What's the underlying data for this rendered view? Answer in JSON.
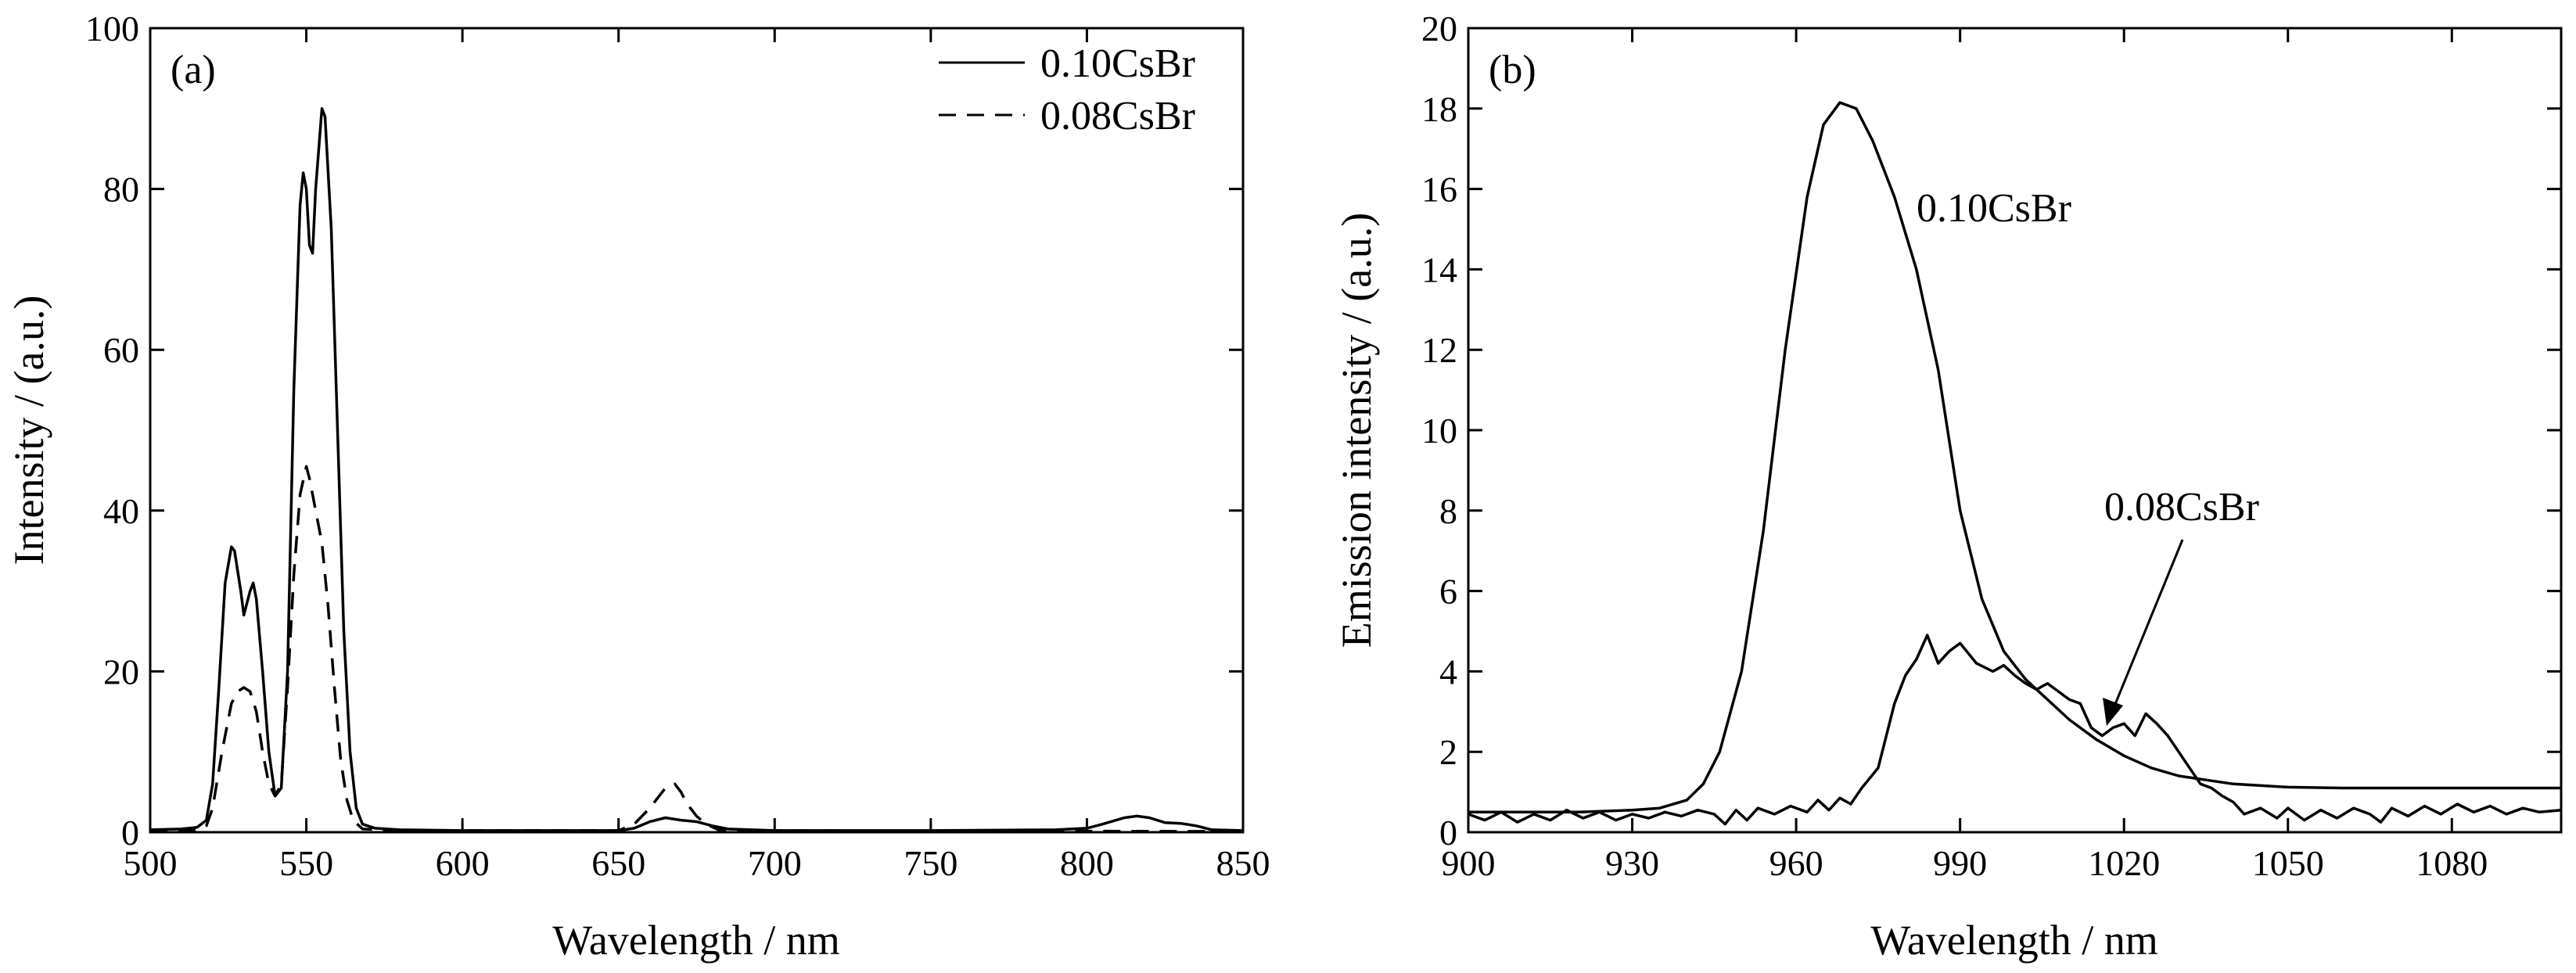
{
  "chart_data": [
    {
      "panel": "(a)",
      "type": "line",
      "xlabel": "Wavelength / nm",
      "ylabel": "Intensity / (a.u.)",
      "xlim": [
        500,
        850
      ],
      "ylim": [
        0,
        100
      ],
      "xticks": [
        500,
        550,
        600,
        650,
        700,
        750,
        800,
        850
      ],
      "yticks": [
        0,
        20,
        40,
        60,
        80,
        100
      ],
      "legend": "top-right",
      "series": [
        {
          "name": "0.10CsBr",
          "style": "solid",
          "points": [
            [
              500,
              0.3
            ],
            [
              510,
              0.4
            ],
            [
              515,
              0.6
            ],
            [
              518,
              1.5
            ],
            [
              520,
              6
            ],
            [
              522,
              18
            ],
            [
              524,
              31
            ],
            [
              526,
              35.5
            ],
            [
              527,
              35
            ],
            [
              529,
              30
            ],
            [
              530,
              27
            ],
            [
              532,
              30
            ],
            [
              533,
              31
            ],
            [
              534,
              29
            ],
            [
              536,
              20
            ],
            [
              538,
              10
            ],
            [
              540,
              4.5
            ],
            [
              542,
              5.5
            ],
            [
              544,
              20
            ],
            [
              546,
              55
            ],
            [
              548,
              78
            ],
            [
              549,
              82
            ],
            [
              550,
              80
            ],
            [
              551,
              73
            ],
            [
              552,
              72
            ],
            [
              553,
              80
            ],
            [
              555,
              90
            ],
            [
              556,
              89
            ],
            [
              558,
              75
            ],
            [
              560,
              50
            ],
            [
              562,
              25
            ],
            [
              564,
              10
            ],
            [
              566,
              3
            ],
            [
              568,
              1
            ],
            [
              572,
              0.5
            ],
            [
              580,
              0.3
            ],
            [
              600,
              0.2
            ],
            [
              620,
              0.2
            ],
            [
              640,
              0.2
            ],
            [
              650,
              0.2
            ],
            [
              655,
              0.5
            ],
            [
              660,
              1.3
            ],
            [
              665,
              1.8
            ],
            [
              670,
              1.5
            ],
            [
              675,
              1.3
            ],
            [
              680,
              0.8
            ],
            [
              685,
              0.4
            ],
            [
              700,
              0.2
            ],
            [
              750,
              0.2
            ],
            [
              790,
              0.3
            ],
            [
              800,
              0.5
            ],
            [
              805,
              1
            ],
            [
              812,
              1.8
            ],
            [
              816,
              2
            ],
            [
              820,
              1.8
            ],
            [
              825,
              1.2
            ],
            [
              830,
              1.1
            ],
            [
              835,
              0.8
            ],
            [
              840,
              0.3
            ],
            [
              850,
              0.2
            ]
          ]
        },
        {
          "name": "0.08CsBr",
          "style": "dashed",
          "points": [
            [
              500,
              0.2
            ],
            [
              515,
              0.3
            ],
            [
              518,
              0.8
            ],
            [
              520,
              3
            ],
            [
              523,
              10
            ],
            [
              526,
              16
            ],
            [
              528,
              17.5
            ],
            [
              530,
              18
            ],
            [
              532,
              17.5
            ],
            [
              534,
              15
            ],
            [
              536,
              10
            ],
            [
              538,
              6
            ],
            [
              540,
              4.5
            ],
            [
              542,
              6
            ],
            [
              544,
              18
            ],
            [
              546,
              32
            ],
            [
              548,
              42
            ],
            [
              550,
              45.5
            ],
            [
              551,
              44
            ],
            [
              552,
              42
            ],
            [
              553,
              40
            ],
            [
              555,
              36
            ],
            [
              557,
              28
            ],
            [
              559,
              18
            ],
            [
              561,
              9
            ],
            [
              563,
              4
            ],
            [
              565,
              1.5
            ],
            [
              568,
              0.4
            ],
            [
              580,
              0.2
            ],
            [
              650,
              0.2
            ],
            [
              655,
              1
            ],
            [
              660,
              3
            ],
            [
              665,
              5.5
            ],
            [
              668,
              6
            ],
            [
              670,
              5
            ],
            [
              672,
              3.5
            ],
            [
              675,
              2
            ],
            [
              678,
              1
            ],
            [
              682,
              0.3
            ],
            [
              700,
              0.2
            ],
            [
              850,
              0.1
            ]
          ]
        }
      ]
    },
    {
      "panel": "(b)",
      "type": "line",
      "xlabel": "Wavelength / nm",
      "ylabel": "Emission intensity / (a.u.)",
      "xlim": [
        900,
        1100
      ],
      "ylim": [
        0,
        20
      ],
      "xticks": [
        900,
        930,
        960,
        990,
        1020,
        1050,
        1080
      ],
      "yticks": [
        0,
        2,
        4,
        6,
        8,
        10,
        12,
        14,
        16,
        18,
        20
      ],
      "annotations": [
        "0.10CsBr",
        "0.08CsBr"
      ],
      "series": [
        {
          "name": "0.10CsBr",
          "style": "solid",
          "points": [
            [
              900,
              0.5
            ],
            [
              910,
              0.5
            ],
            [
              920,
              0.5
            ],
            [
              930,
              0.55
            ],
            [
              935,
              0.6
            ],
            [
              940,
              0.8
            ],
            [
              943,
              1.2
            ],
            [
              946,
              2
            ],
            [
              950,
              4
            ],
            [
              954,
              7.5
            ],
            [
              958,
              12
            ],
            [
              962,
              15.8
            ],
            [
              965,
              17.6
            ],
            [
              968,
              18.15
            ],
            [
              971,
              18
            ],
            [
              974,
              17.2
            ],
            [
              978,
              15.8
            ],
            [
              982,
              14
            ],
            [
              986,
              11.5
            ],
            [
              990,
              8
            ],
            [
              994,
              5.8
            ],
            [
              998,
              4.5
            ],
            [
              1002,
              3.8
            ],
            [
              1006,
              3.3
            ],
            [
              1010,
              2.8
            ],
            [
              1015,
              2.3
            ],
            [
              1020,
              1.9
            ],
            [
              1025,
              1.6
            ],
            [
              1030,
              1.4
            ],
            [
              1035,
              1.3
            ],
            [
              1040,
              1.2
            ],
            [
              1050,
              1.12
            ],
            [
              1060,
              1.1
            ],
            [
              1080,
              1.1
            ],
            [
              1100,
              1.1
            ]
          ]
        },
        {
          "name": "0.08CsBr",
          "style": "solid",
          "points": [
            [
              900,
              0.45
            ],
            [
              903,
              0.3
            ],
            [
              906,
              0.5
            ],
            [
              909,
              0.25
            ],
            [
              912,
              0.45
            ],
            [
              915,
              0.3
            ],
            [
              918,
              0.55
            ],
            [
              921,
              0.35
            ],
            [
              924,
              0.5
            ],
            [
              927,
              0.3
            ],
            [
              930,
              0.45
            ],
            [
              933,
              0.35
            ],
            [
              936,
              0.5
            ],
            [
              939,
              0.4
            ],
            [
              942,
              0.55
            ],
            [
              945,
              0.45
            ],
            [
              947,
              0.2
            ],
            [
              949,
              0.55
            ],
            [
              951,
              0.3
            ],
            [
              953,
              0.6
            ],
            [
              956,
              0.45
            ],
            [
              959,
              0.65
            ],
            [
              962,
              0.5
            ],
            [
              964,
              0.8
            ],
            [
              966,
              0.55
            ],
            [
              968,
              0.85
            ],
            [
              970,
              0.7
            ],
            [
              972,
              1.1
            ],
            [
              975,
              1.6
            ],
            [
              978,
              3.2
            ],
            [
              980,
              3.9
            ],
            [
              982,
              4.3
            ],
            [
              984,
              4.9
            ],
            [
              986,
              4.2
            ],
            [
              988,
              4.5
            ],
            [
              990,
              4.7
            ],
            [
              993,
              4.2
            ],
            [
              996,
              4
            ],
            [
              998,
              4.15
            ],
            [
              1000,
              3.9
            ],
            [
              1002,
              3.7
            ],
            [
              1004,
              3.55
            ],
            [
              1006,
              3.7
            ],
            [
              1008,
              3.5
            ],
            [
              1010,
              3.3
            ],
            [
              1012,
              3.2
            ],
            [
              1014,
              2.6
            ],
            [
              1016,
              2.4
            ],
            [
              1018,
              2.6
            ],
            [
              1020,
              2.7
            ],
            [
              1022,
              2.4
            ],
            [
              1024,
              2.95
            ],
            [
              1026,
              2.7
            ],
            [
              1028,
              2.4
            ],
            [
              1030,
              2
            ],
            [
              1032,
              1.6
            ],
            [
              1034,
              1.2
            ],
            [
              1036,
              1.1
            ],
            [
              1038,
              0.9
            ],
            [
              1040,
              0.75
            ],
            [
              1042,
              0.45
            ],
            [
              1045,
              0.6
            ],
            [
              1048,
              0.35
            ],
            [
              1050,
              0.6
            ],
            [
              1053,
              0.3
            ],
            [
              1056,
              0.55
            ],
            [
              1059,
              0.35
            ],
            [
              1062,
              0.6
            ],
            [
              1065,
              0.45
            ],
            [
              1067,
              0.25
            ],
            [
              1069,
              0.6
            ],
            [
              1072,
              0.4
            ],
            [
              1075,
              0.65
            ],
            [
              1078,
              0.45
            ],
            [
              1081,
              0.7
            ],
            [
              1084,
              0.5
            ],
            [
              1087,
              0.65
            ],
            [
              1090,
              0.45
            ],
            [
              1093,
              0.6
            ],
            [
              1096,
              0.5
            ],
            [
              1100,
              0.55
            ]
          ]
        }
      ]
    }
  ]
}
